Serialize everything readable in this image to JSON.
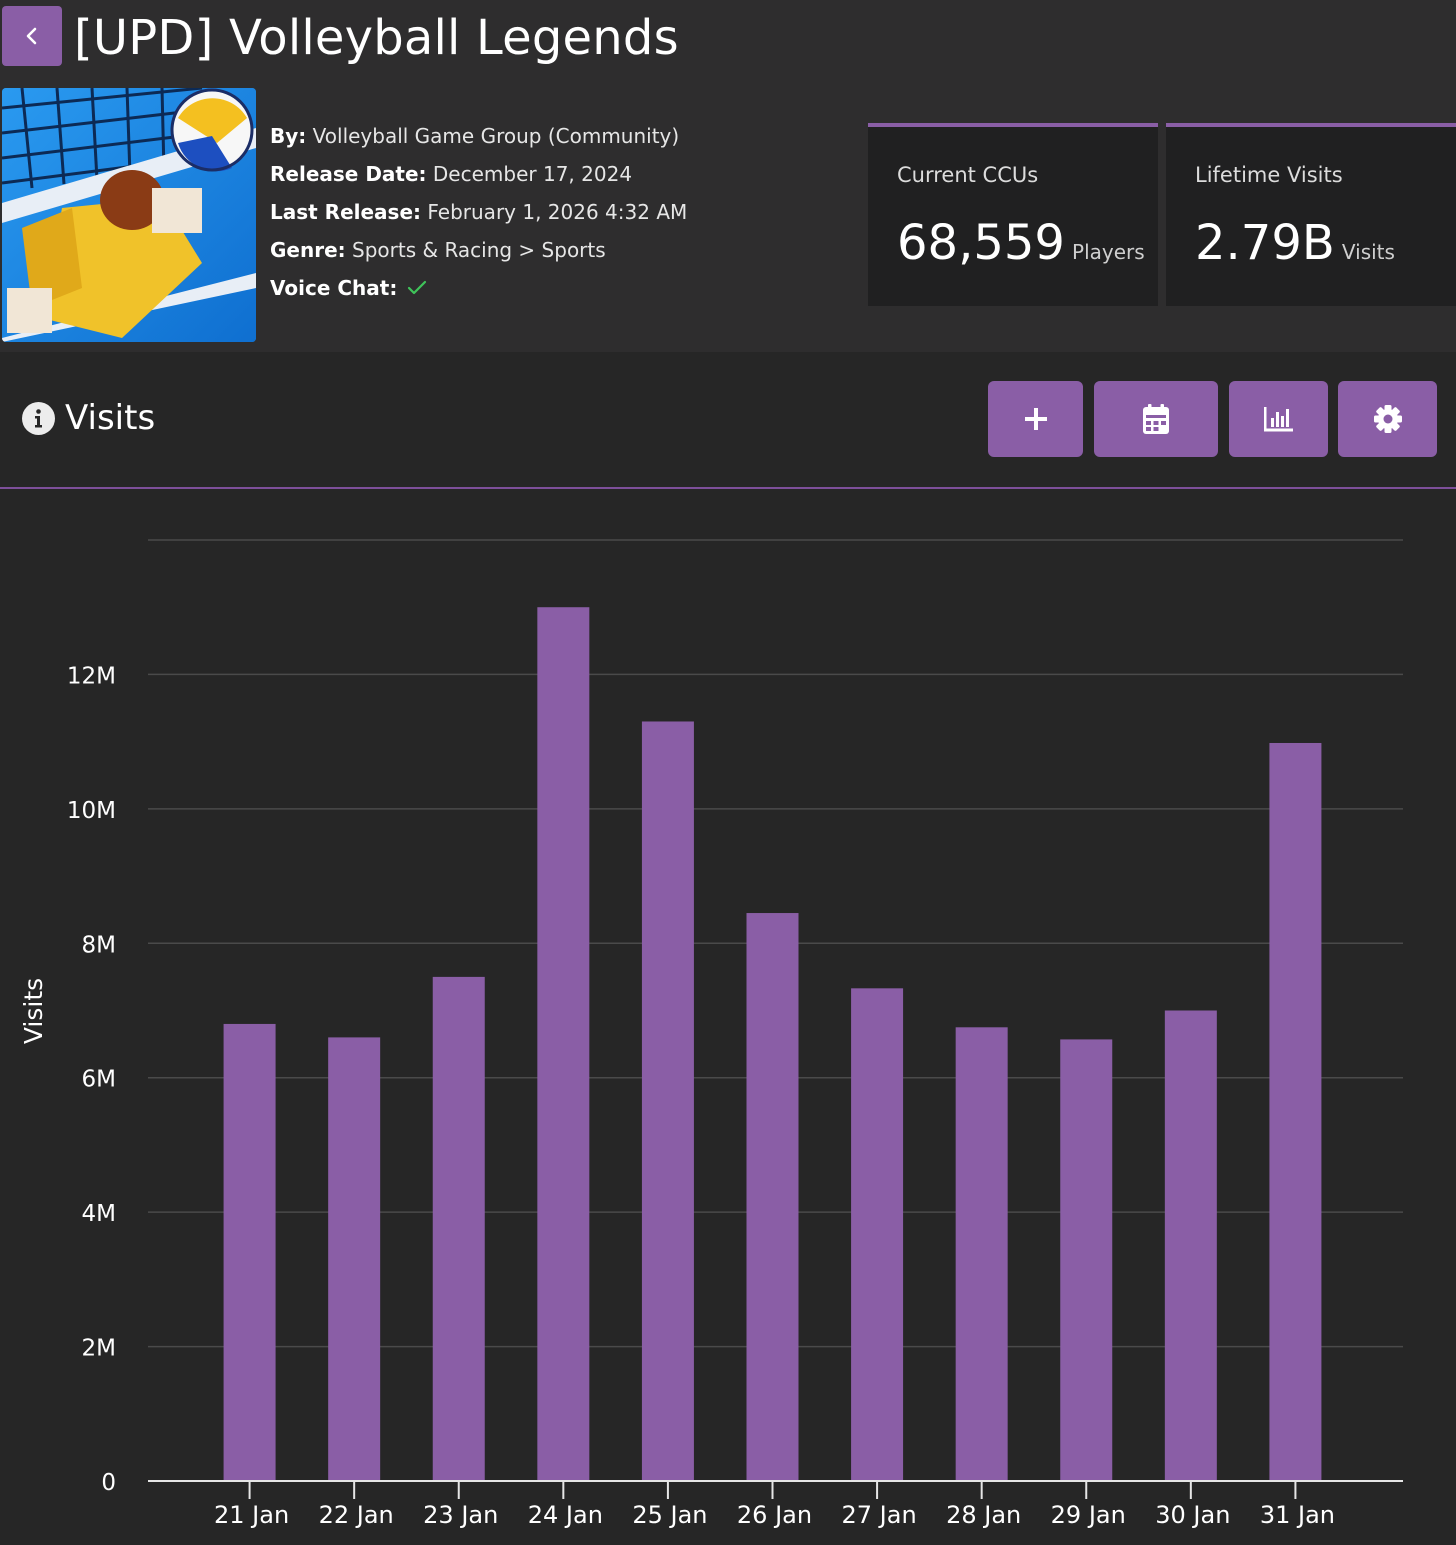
{
  "header": {
    "title": "[UPD] Volleyball Legends"
  },
  "details": {
    "by_label": "By:",
    "by_value": "Volleyball Game Group (Community)",
    "release_label": "Release Date:",
    "release_value": "December 17, 2024",
    "last_release_label": "Last Release:",
    "last_release_value": "February 1, 2026 4:32 AM",
    "genre_label": "Genre:",
    "genre_value": "Sports & Racing > Sports",
    "voice_label": "Voice Chat:",
    "voice_icon": "check-icon"
  },
  "stats": {
    "ccu_label": "Current CCUs",
    "ccu_value": "68,559",
    "ccu_unit": "Players",
    "visits_label": "Lifetime Visits",
    "visits_value": "2.79B",
    "visits_unit": "Visits"
  },
  "section": {
    "title": "Visits",
    "buttons": [
      "plus-icon",
      "calendar-icon",
      "bar-chart-icon",
      "gear-icon"
    ]
  },
  "colors": {
    "accent": "#8a5ea6",
    "bar": "#8a5ea6",
    "background": "#262626",
    "panel": "#2e2d2e",
    "check": "#3fc45a"
  },
  "chart_data": {
    "type": "bar",
    "title": "",
    "xlabel": "",
    "ylabel": "Visits",
    "categories": [
      "21 Jan",
      "22 Jan",
      "23 Jan",
      "24 Jan",
      "25 Jan",
      "26 Jan",
      "27 Jan",
      "28 Jan",
      "29 Jan",
      "30 Jan",
      "31 Jan"
    ],
    "values": [
      6800000,
      6600000,
      7500000,
      13000000,
      11300000,
      8450000,
      7330000,
      6750000,
      6570000,
      7000000,
      10980000
    ],
    "yticks": [
      0,
      2000000,
      4000000,
      6000000,
      8000000,
      10000000,
      12000000,
      14000000
    ],
    "ytick_labels": [
      "0",
      "2M",
      "4M",
      "6M",
      "8M",
      "10M",
      "12M",
      ""
    ],
    "ylim": [
      0,
      14000000
    ],
    "grid": true
  }
}
